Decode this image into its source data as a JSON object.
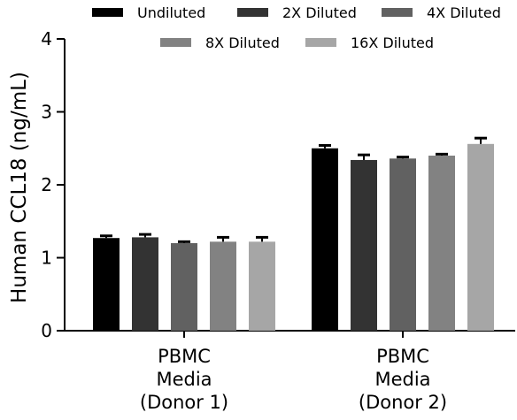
{
  "chart_data": {
    "type": "bar",
    "ylabel": "Human CCL18 (ng/mL)",
    "xlabel": "",
    "ylim": [
      0,
      4
    ],
    "yticks": [
      "0",
      "1",
      "2",
      "3",
      "4"
    ],
    "categories": [
      [
        "PBMC",
        "Media",
        "(Donor 1)"
      ],
      [
        "PBMC",
        "Media",
        "(Donor 2)"
      ]
    ],
    "legend_position": "top",
    "error_bars": true,
    "series": [
      {
        "name": "Undiluted",
        "color": "#000000",
        "values": [
          1.27,
          2.5
        ],
        "errors": [
          0.03,
          0.04
        ]
      },
      {
        "name": "2X Diluted",
        "color": "#333333",
        "values": [
          1.28,
          2.34
        ],
        "errors": [
          0.04,
          0.07
        ]
      },
      {
        "name": "4X Diluted",
        "color": "#616161",
        "values": [
          1.2,
          2.36
        ],
        "errors": [
          0.02,
          0.02
        ]
      },
      {
        "name": "8X Diluted",
        "color": "#828282",
        "values": [
          1.22,
          2.4
        ],
        "errors": [
          0.06,
          0.02
        ]
      },
      {
        "name": "16X Diluted",
        "color": "#a6a6a6",
        "values": [
          1.22,
          2.56
        ],
        "errors": [
          0.06,
          0.08
        ]
      }
    ]
  }
}
